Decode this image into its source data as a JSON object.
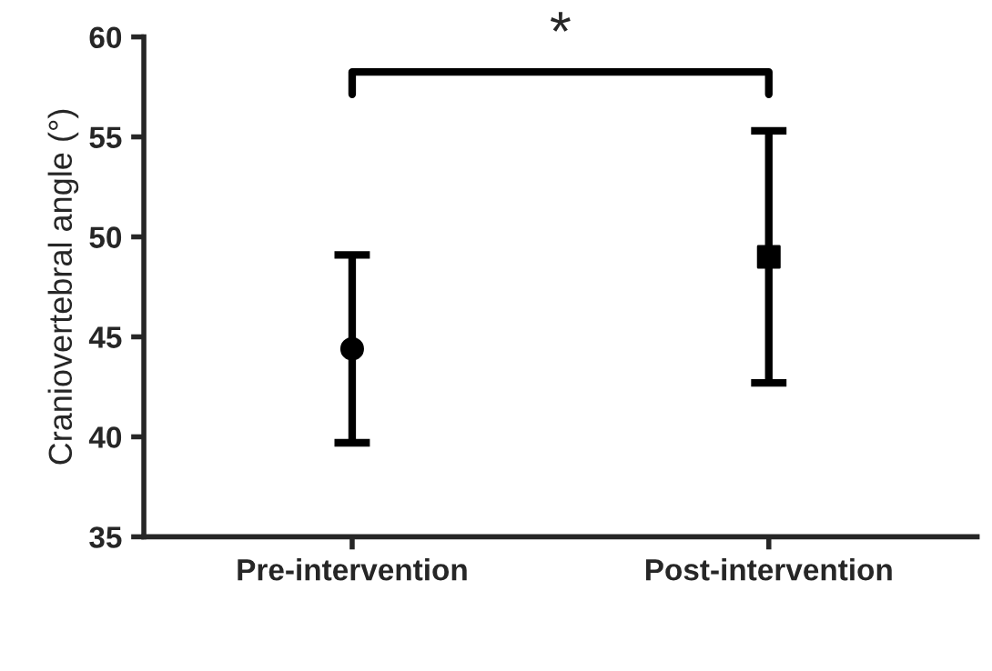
{
  "chart_data": {
    "type": "scatter",
    "ylabel": "Craniovertebral angle (°)",
    "categories": [
      "Pre-intervention",
      "Post-intervention"
    ],
    "series": [
      {
        "color": "#000000",
        "marker": "circle",
        "values": [
          44.4,
          null
        ],
        "errors": [
          [
            39.7,
            49.1
          ],
          null
        ]
      },
      {
        "color": "#000000",
        "marker": "square",
        "values": [
          null,
          49.0
        ],
        "errors": [
          null,
          [
            42.7,
            55.3
          ]
        ]
      }
    ],
    "ylim": [
      35,
      60
    ],
    "yticks": [
      35,
      40,
      45,
      50,
      55,
      60
    ],
    "grid": false,
    "legend": false,
    "annotations": [
      "*"
    ]
  }
}
